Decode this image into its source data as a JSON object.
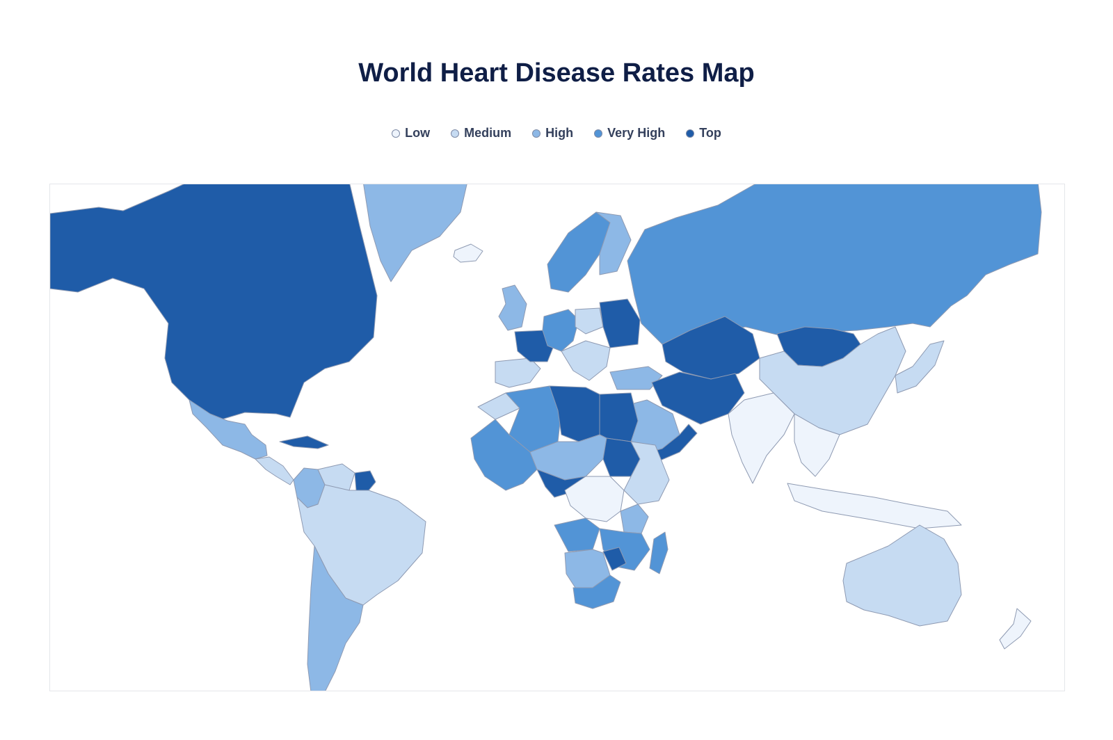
{
  "title": "World Heart Disease Rates Map",
  "legend": [
    {
      "label": "Low",
      "color": "#eef4fc"
    },
    {
      "label": "Medium",
      "color": "#c6dbf2"
    },
    {
      "label": "High",
      "color": "#8db8e6"
    },
    {
      "label": "Very High",
      "color": "#5294d6"
    },
    {
      "label": "Top",
      "color": "#1f5ca8"
    }
  ],
  "map": {
    "type": "choropleth",
    "projection": "mercator",
    "categories": [
      "Low",
      "Medium",
      "High",
      "Very High",
      "Top"
    ],
    "regions": [
      {
        "name": "north-america",
        "category": "Top"
      },
      {
        "name": "greenland",
        "category": "High"
      },
      {
        "name": "iceland",
        "category": "Low"
      },
      {
        "name": "mexico",
        "category": "High"
      },
      {
        "name": "central-america",
        "category": "Medium"
      },
      {
        "name": "caribbean",
        "category": "Top"
      },
      {
        "name": "colombia",
        "category": "High"
      },
      {
        "name": "venezuela",
        "category": "Medium"
      },
      {
        "name": "guianas",
        "category": "Top"
      },
      {
        "name": "south-america",
        "category": "Medium"
      },
      {
        "name": "argentina-chile",
        "category": "High"
      },
      {
        "name": "uk-ireland",
        "category": "High"
      },
      {
        "name": "iberia",
        "category": "Medium"
      },
      {
        "name": "france",
        "category": "Top"
      },
      {
        "name": "scandinavia",
        "category": "Very High"
      },
      {
        "name": "finland",
        "category": "High"
      },
      {
        "name": "central-europe",
        "category": "Very High"
      },
      {
        "name": "poland",
        "category": "Medium"
      },
      {
        "name": "ukraine-belarus",
        "category": "Top"
      },
      {
        "name": "balkans",
        "category": "Medium"
      },
      {
        "name": "turkey",
        "category": "High"
      },
      {
        "name": "russia",
        "category": "Very High"
      },
      {
        "name": "kazakhstan-central-asia",
        "category": "Top"
      },
      {
        "name": "mongolia",
        "category": "Top"
      },
      {
        "name": "china",
        "category": "Medium"
      },
      {
        "name": "japan-korea",
        "category": "Medium"
      },
      {
        "name": "iran-afghanistan",
        "category": "Top"
      },
      {
        "name": "saudi-arabia",
        "category": "High"
      },
      {
        "name": "yemen-oman",
        "category": "Top"
      },
      {
        "name": "india",
        "category": "Low"
      },
      {
        "name": "southeast-asia",
        "category": "Low"
      },
      {
        "name": "indonesia",
        "category": "Low"
      },
      {
        "name": "australia",
        "category": "Medium"
      },
      {
        "name": "new-zealand",
        "category": "Low"
      },
      {
        "name": "morocco",
        "category": "Medium"
      },
      {
        "name": "algeria",
        "category": "Very High"
      },
      {
        "name": "libya",
        "category": "Top"
      },
      {
        "name": "egypt",
        "category": "Top"
      },
      {
        "name": "west-africa",
        "category": "Very High"
      },
      {
        "name": "sahel",
        "category": "High"
      },
      {
        "name": "sudan",
        "category": "Top"
      },
      {
        "name": "ethiopia-east-africa",
        "category": "Medium"
      },
      {
        "name": "cameroon-nigeria",
        "category": "Top"
      },
      {
        "name": "congo",
        "category": "Low"
      },
      {
        "name": "tanzania",
        "category": "High"
      },
      {
        "name": "angola",
        "category": "Very High"
      },
      {
        "name": "zambia-mozambique",
        "category": "Very High"
      },
      {
        "name": "zimbabwe",
        "category": "Top"
      },
      {
        "name": "namibia-botswana",
        "category": "High"
      },
      {
        "name": "south-africa",
        "category": "Very High"
      },
      {
        "name": "madagascar",
        "category": "Very High"
      }
    ]
  }
}
